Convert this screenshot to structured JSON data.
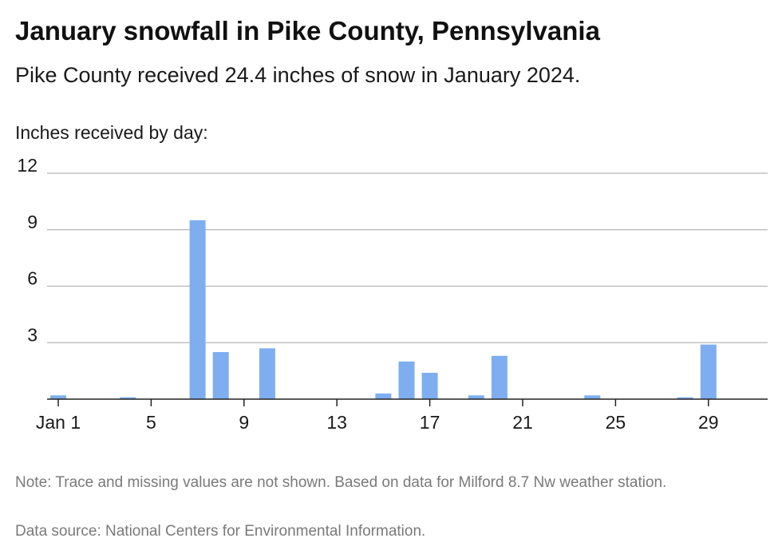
{
  "header": {
    "title": "January snowfall in Pike County, Pennsylvania",
    "subtitle": "Pike County received 24.4 inches of snow in January 2024.",
    "axis_label": "Inches received by day:"
  },
  "footer": {
    "note": "Note: Trace and missing values are not shown. Based on data for Milford 8.7 Nw weather station.",
    "source": "Data source: National Centers for Environmental Information."
  },
  "colors": {
    "bar": "#7eaef0",
    "grid": "#b5b5b5",
    "axis": "#222222"
  },
  "chart_data": {
    "type": "bar",
    "title": "January snowfall in Pike County, Pennsylvania",
    "ylabel": "Inches received by day:",
    "ylim": [
      0,
      12
    ],
    "yticks": [
      3,
      6,
      9,
      12
    ],
    "grid": true,
    "x_tick_labels": [
      {
        "day": 1,
        "label": "Jan 1"
      },
      {
        "day": 5,
        "label": "5"
      },
      {
        "day": 9,
        "label": "9"
      },
      {
        "day": 13,
        "label": "13"
      },
      {
        "day": 17,
        "label": "17"
      },
      {
        "day": 21,
        "label": "21"
      },
      {
        "day": 25,
        "label": "25"
      },
      {
        "day": 29,
        "label": "29"
      }
    ],
    "categories": [
      1,
      2,
      3,
      4,
      5,
      6,
      7,
      8,
      9,
      10,
      11,
      12,
      13,
      14,
      15,
      16,
      17,
      18,
      19,
      20,
      21,
      22,
      23,
      24,
      25,
      26,
      27,
      28,
      29,
      30,
      31
    ],
    "values": [
      0.2,
      0,
      0,
      0.1,
      0,
      0,
      9.5,
      2.5,
      0,
      2.7,
      0,
      0,
      0,
      0,
      0.3,
      2.0,
      1.4,
      0,
      0.2,
      2.3,
      0,
      0,
      0,
      0.2,
      0,
      0,
      0,
      0.1,
      2.9,
      0,
      0
    ]
  }
}
